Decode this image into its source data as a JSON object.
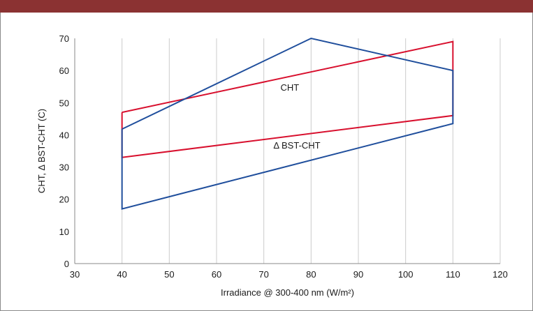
{
  "chart_data": {
    "type": "line",
    "xlabel": "Irradiance @ 300-400 nm (W/m²)",
    "ylabel": "CHT, Δ BST-CHT (C)",
    "xlim": [
      30,
      120
    ],
    "ylim": [
      0,
      70
    ],
    "xticks": [
      30,
      40,
      50,
      60,
      70,
      80,
      90,
      100,
      110,
      120
    ],
    "yticks": [
      0,
      10,
      20,
      30,
      40,
      50,
      60,
      70
    ],
    "grid": "vertical",
    "series": [
      {
        "color": "#d8102e",
        "x": [
          40,
          110,
          110,
          40,
          40
        ],
        "y": [
          47,
          69,
          46,
          33,
          47
        ]
      },
      {
        "color": "#1f4e9c",
        "x": [
          40,
          80,
          110,
          110,
          40,
          40
        ],
        "y": [
          41.8,
          70,
          60,
          43.5,
          17,
          41.8
        ]
      }
    ],
    "annotations": [
      {
        "text": "CHT",
        "x": 75.5,
        "y": 53.8
      },
      {
        "text": "Δ BST-CHT",
        "x": 77,
        "y": 35.8
      }
    ],
    "colors": {
      "header_bar": "#8b3232",
      "grid": "#cccccc",
      "axis": "#8a8a8a"
    }
  }
}
